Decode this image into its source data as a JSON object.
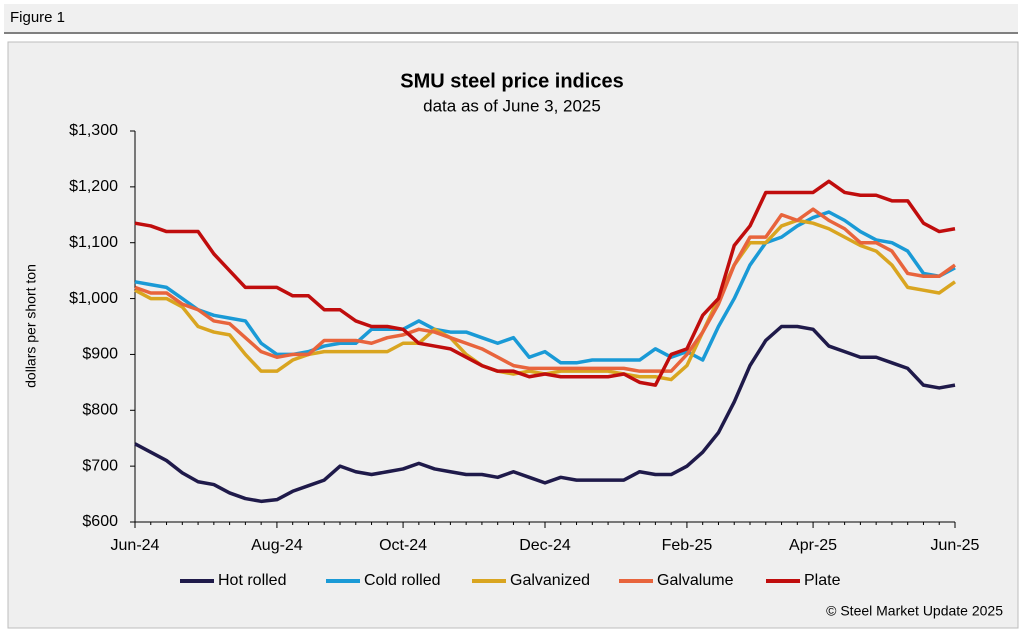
{
  "header": "Figure 1",
  "chart_data": {
    "type": "line",
    "title": "SMU steel price indices",
    "subtitle": "data as of June 3, 2025",
    "ylabel": "dollars per short ton",
    "source": "© Steel Market Update 2025",
    "categories": [
      "Jun-24",
      null,
      null,
      null,
      null,
      null,
      null,
      null,
      null,
      "Aug-24",
      null,
      null,
      null,
      null,
      null,
      null,
      null,
      "Oct-24",
      null,
      null,
      null,
      null,
      null,
      null,
      null,
      null,
      "Dec-24",
      null,
      null,
      null,
      null,
      null,
      null,
      null,
      null,
      "Feb-25",
      null,
      null,
      null,
      null,
      null,
      null,
      null,
      "Apr-25",
      null,
      null,
      null,
      null,
      null,
      null,
      null,
      null,
      "Jun-25"
    ],
    "ylim": [
      600,
      1300
    ],
    "yticks": [
      {
        "value": 600,
        "label": "$600"
      },
      {
        "value": 700,
        "label": "$700"
      },
      {
        "value": 800,
        "label": "$800"
      },
      {
        "value": 900,
        "label": "$900"
      },
      {
        "value": 1000,
        "label": "$1,000"
      },
      {
        "value": 1100,
        "label": "$1,100"
      },
      {
        "value": 1200,
        "label": "$1,200"
      },
      {
        "value": 1300,
        "label": "$1,300"
      }
    ],
    "grid": false,
    "legend": "bottom",
    "series": [
      {
        "name": "Hot rolled",
        "color": "#1f1a4a",
        "values": [
          740,
          725,
          710,
          688,
          672,
          667,
          652,
          642,
          637,
          640,
          655,
          665,
          675,
          700,
          690,
          685,
          690,
          695,
          705,
          695,
          690,
          685,
          685,
          680,
          690,
          680,
          670,
          680,
          675,
          675,
          675,
          675,
          690,
          685,
          685,
          700,
          725,
          760,
          815,
          880,
          925,
          950,
          950,
          945,
          915,
          905,
          895,
          895,
          885,
          875,
          845,
          840,
          845
        ]
      },
      {
        "name": "Cold rolled",
        "color": "#1a9ad6",
        "values": [
          1030,
          1025,
          1020,
          1000,
          980,
          970,
          965,
          960,
          920,
          900,
          900,
          905,
          915,
          920,
          920,
          945,
          945,
          945,
          960,
          945,
          940,
          940,
          930,
          920,
          930,
          895,
          905,
          885,
          885,
          890,
          890,
          890,
          890,
          910,
          895,
          905,
          890,
          950,
          1000,
          1060,
          1100,
          1110,
          1130,
          1145,
          1155,
          1140,
          1120,
          1105,
          1100,
          1085,
          1045,
          1040,
          1055
        ]
      },
      {
        "name": "Galvanized",
        "color": "#d9a520",
        "values": [
          1015,
          1000,
          1000,
          985,
          950,
          940,
          935,
          900,
          870,
          870,
          890,
          900,
          905,
          905,
          905,
          905,
          905,
          920,
          920,
          945,
          930,
          900,
          880,
          870,
          865,
          870,
          865,
          870,
          870,
          870,
          870,
          865,
          860,
          860,
          855,
          880,
          940,
          1000,
          1060,
          1100,
          1100,
          1130,
          1140,
          1135,
          1125,
          1110,
          1095,
          1085,
          1060,
          1020,
          1015,
          1010,
          1030
        ]
      },
      {
        "name": "Galvalume",
        "color": "#e8643c",
        "values": [
          1020,
          1010,
          1010,
          990,
          980,
          960,
          955,
          930,
          905,
          895,
          900,
          900,
          925,
          925,
          925,
          920,
          930,
          935,
          945,
          940,
          930,
          920,
          910,
          895,
          880,
          875,
          875,
          875,
          875,
          875,
          875,
          875,
          870,
          870,
          870,
          900,
          940,
          990,
          1060,
          1110,
          1110,
          1150,
          1140,
          1160,
          1140,
          1125,
          1100,
          1100,
          1085,
          1045,
          1040,
          1040,
          1060
        ]
      },
      {
        "name": "Plate",
        "color": "#c00d0d",
        "values": [
          1135,
          1130,
          1120,
          1120,
          1120,
          1080,
          1050,
          1020,
          1020,
          1020,
          1005,
          1005,
          980,
          980,
          960,
          950,
          950,
          945,
          920,
          915,
          910,
          895,
          880,
          870,
          870,
          860,
          865,
          860,
          860,
          860,
          860,
          865,
          850,
          845,
          900,
          910,
          970,
          1000,
          1095,
          1130,
          1190,
          1190,
          1190,
          1190,
          1210,
          1190,
          1185,
          1185,
          1175,
          1175,
          1135,
          1120,
          1125
        ]
      }
    ]
  }
}
